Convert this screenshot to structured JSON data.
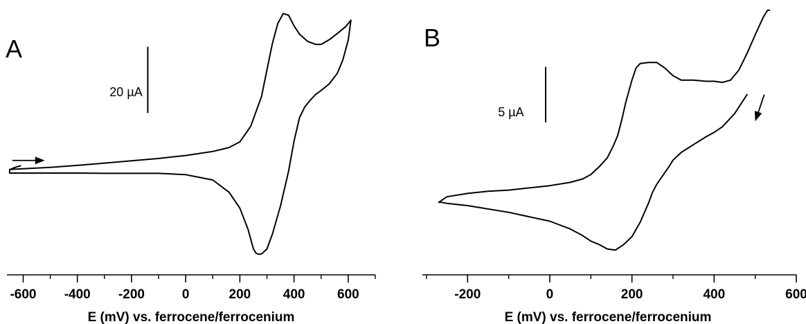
{
  "figure": {
    "panels": [
      {
        "label": "A",
        "scalebar_label": "20 µA",
        "xlabel": "E (mV) vs. ferrocene/ferrocenium"
      },
      {
        "label": "B",
        "scalebar_label": "5 µA",
        "xlabel": "E (mV) vs. ferrocene/ferrocenium"
      }
    ]
  },
  "chart_data": [
    {
      "type": "line",
      "panel": "A",
      "title": "",
      "xlabel": "E (mV) vs. ferrocene/ferrocenium",
      "ylabel": "",
      "xlim": [
        -660,
        700
      ],
      "ylim": [
        -27,
        49
      ],
      "xticks": [
        -600,
        -400,
        -200,
        0,
        200,
        400,
        600
      ],
      "x_minor_step": 100,
      "scale_bar": {
        "label": "20 µA",
        "value_uA": 20,
        "x": -140,
        "y_bottom": 17
      },
      "arrow": {
        "direction": "positive",
        "x": [
          -640,
          -520
        ],
        "y": 2.7
      },
      "series": [
        {
          "x": [
            -650,
            -600,
            -500,
            -400,
            -300,
            -200,
            -100,
            0,
            100,
            160,
            200,
            240,
            280,
            300,
            320,
            340,
            360,
            380,
            400,
            420,
            450,
            480,
            500,
            530,
            560,
            590,
            610,
            600,
            580,
            560,
            530,
            500,
            480,
            460,
            440,
            420,
            400,
            380,
            350,
            320,
            300,
            280,
            270,
            260,
            250,
            240,
            230,
            200,
            160,
            100,
            0,
            -100,
            -200,
            -300,
            -400,
            -500,
            -600,
            -650,
            -650,
            -630,
            -610
          ],
          "y": [
            0,
            0.2,
            0.6,
            1.2,
            1.9,
            2.6,
            3.3,
            4.2,
            5.4,
            6.6,
            8.3,
            13,
            22,
            30,
            38,
            44,
            47,
            46.5,
            43.3,
            40.8,
            38.6,
            37.7,
            37.7,
            39.1,
            41,
            43,
            45,
            39,
            33,
            29,
            25.8,
            23.8,
            22.6,
            20.9,
            18.9,
            15.6,
            8.5,
            -0.5,
            -11,
            -19.5,
            -24,
            -25.5,
            -25.6,
            -25.3,
            -24,
            -21,
            -18,
            -11.7,
            -6.9,
            -3.2,
            -1.6,
            -1.2,
            -1.2,
            -1.2,
            -1.1,
            -1.1,
            -1.1,
            -1.1,
            -0.1,
            0.6,
            1.1
          ]
        }
      ]
    },
    {
      "type": "line",
      "panel": "B",
      "title": "",
      "xlabel": "E (mV) vs. ferrocene/ferrocenium",
      "ylabel": "",
      "xlim": [
        -310,
        600
      ],
      "ylim": [
        -7.5,
        15.2
      ],
      "xticks": [
        -200,
        0,
        200,
        400,
        600
      ],
      "x_minor_step": 100,
      "scale_bar": {
        "label": "5 µA",
        "value_uA": 5,
        "x": -10,
        "y_bottom": 4.8
      },
      "arrow": {
        "direction": "negative",
        "x": [
          522,
          500
        ],
        "y_start": 7.3,
        "y_end": 4.9
      },
      "series": [
        {
          "x": [
            480,
            450,
            420,
            400,
            380,
            350,
            320,
            300,
            290,
            275,
            260,
            250,
            240,
            220,
            200,
            180,
            160,
            140,
            120,
            100,
            80,
            50,
            0,
            -100,
            -200,
            -250,
            -265,
            -270,
            -250,
            -200,
            -150,
            -100,
            -50,
            0,
            50,
            80,
            100,
            120,
            140,
            155,
            165,
            175,
            185,
            200,
            210,
            220,
            240,
            260,
            280,
            300,
            320,
            350,
            380,
            400,
            420,
            440,
            460,
            480,
            500,
            520,
            530,
            535
          ],
          "y": [
            7.3,
            5.6,
            4.4,
            3.9,
            3.5,
            2.8,
            2.1,
            1.4,
            0.8,
            0.0,
            -0.8,
            -1.5,
            -2.5,
            -4.2,
            -5.5,
            -6.2,
            -6.7,
            -6.6,
            -6.2,
            -5.9,
            -5.4,
            -4.8,
            -4.1,
            -3.3,
            -2.7,
            -2.5,
            -2.4,
            -2.4,
            -1.9,
            -1.6,
            -1.4,
            -1.3,
            -1.1,
            -0.9,
            -0.6,
            -0.3,
            0.1,
            0.8,
            1.6,
            2.7,
            3.6,
            5.0,
            6.6,
            8.6,
            9.7,
            10.1,
            10.2,
            10.2,
            9.7,
            9.0,
            8.6,
            8.6,
            8.5,
            8.5,
            8.4,
            8.6,
            9.5,
            11,
            12.7,
            14.3,
            14.9,
            14.9
          ]
        }
      ]
    }
  ]
}
